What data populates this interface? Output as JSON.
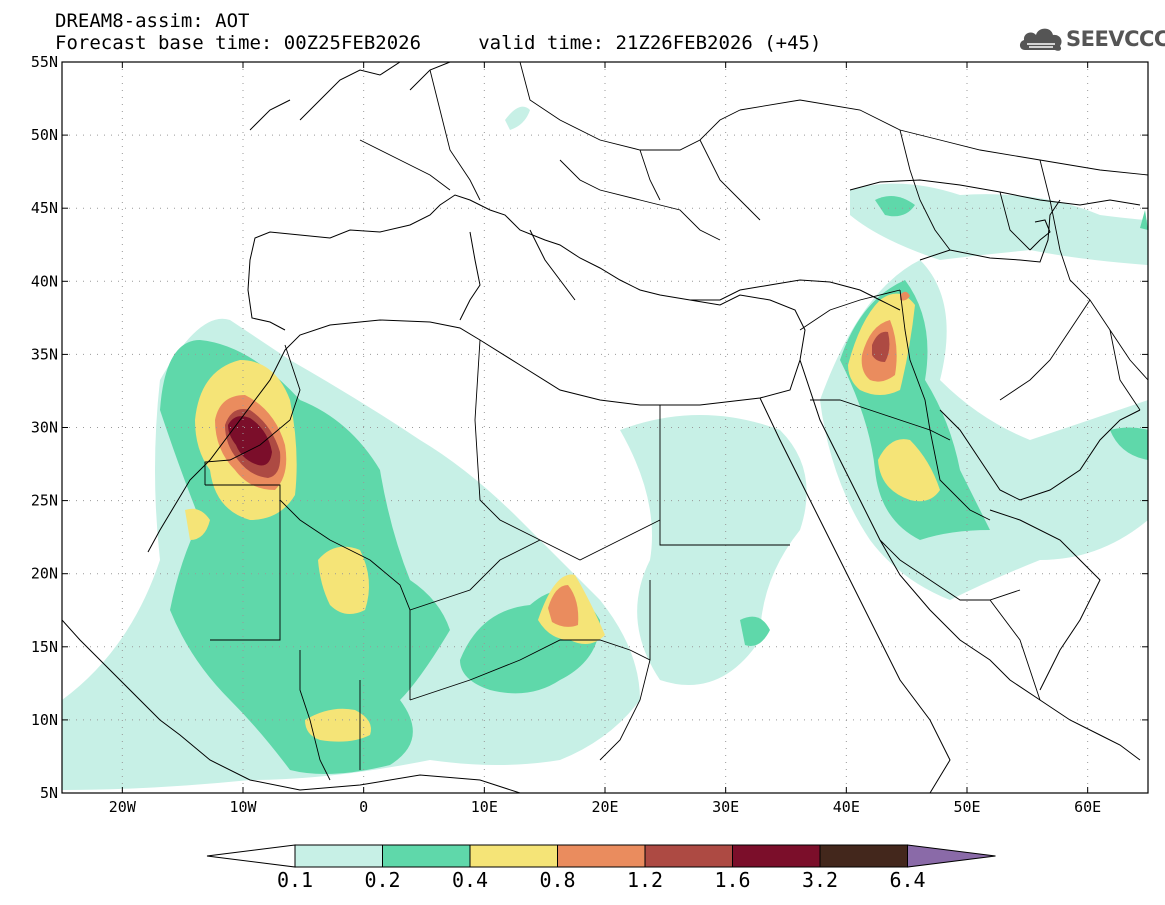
{
  "header": {
    "line1": "DREAM8-assim: AOT",
    "line2": "Forecast base time: 00Z25FEB2026     valid time: 21Z26FEB2026 (+45)",
    "logo_text": "SEEVCCC",
    "logo_icon": "cloud-icon"
  },
  "map": {
    "projection": "lat-lon",
    "lon_range": [
      -25,
      65
    ],
    "lat_range": [
      5,
      55
    ],
    "lat_labels": [
      "55N",
      "50N",
      "45N",
      "40N",
      "35N",
      "30N",
      "25N",
      "20N",
      "15N",
      "10N",
      "5N"
    ],
    "lat_values": [
      55,
      50,
      45,
      40,
      35,
      30,
      25,
      20,
      15,
      10,
      5
    ],
    "lon_labels": [
      "20W",
      "10W",
      "0",
      "10E",
      "20E",
      "30E",
      "40E",
      "50E",
      "60E"
    ],
    "lon_values": [
      -20,
      -10,
      0,
      10,
      20,
      30,
      40,
      50,
      60
    ],
    "grid": "dotted"
  },
  "legend": {
    "labels": [
      "0.1",
      "0.2",
      "0.4",
      "0.8",
      "1.2",
      "1.6",
      "3.2",
      "6.4"
    ],
    "colors": [
      "#ffffff",
      "#c7f0e6",
      "#5fd8aa",
      "#f5e477",
      "#ea8c5e",
      "#ad4a43",
      "#7b0e2a",
      "#43271c",
      "#8a6aa8"
    ]
  }
}
